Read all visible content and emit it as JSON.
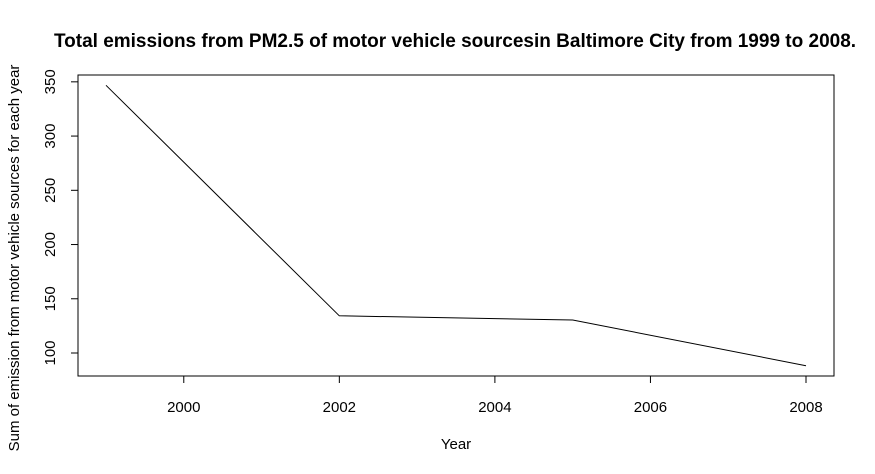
{
  "chart_data": {
    "type": "line",
    "title": "Total emissions from PM2.5 of  motor vehicle sourcesin Baltimore City from 1999 to 2008.",
    "xlabel": "Year",
    "ylabel": "Sum of emission from  motor vehicle sources for each year",
    "x": [
      1999,
      2002,
      2005,
      2008
    ],
    "y": [
      346.82,
      134.31,
      130.43,
      88.28
    ],
    "xlim": [
      1998.64,
      2008.36
    ],
    "ylim": [
      78.8,
      356.3
    ],
    "x_ticks": [
      2000,
      2002,
      2004,
      2006,
      2008
    ],
    "y_ticks": [
      100,
      150,
      200,
      250,
      300,
      350
    ],
    "x_tick_labels": [
      "2000",
      "2002",
      "2004",
      "2006",
      "2008"
    ],
    "y_tick_labels": [
      "100",
      "150",
      "200",
      "250",
      "300",
      "350"
    ],
    "grid": false,
    "line_color": "#000000"
  }
}
